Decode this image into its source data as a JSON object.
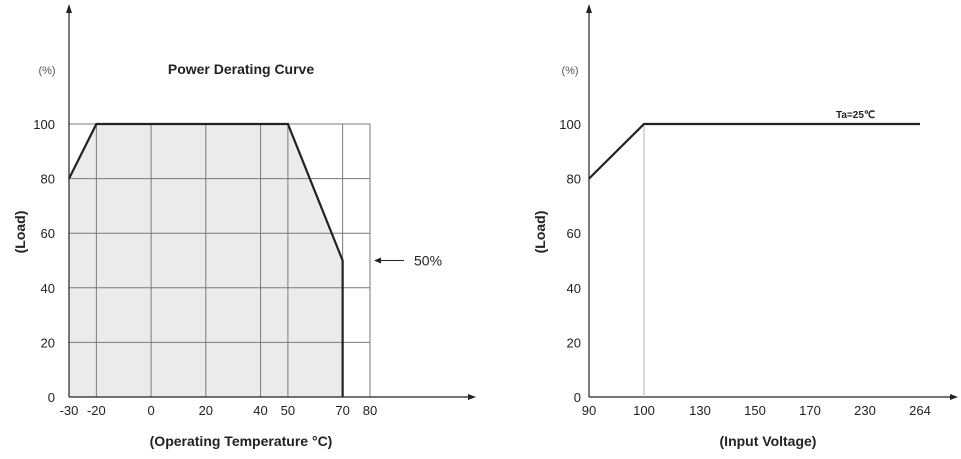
{
  "chart_data": [
    {
      "type": "area",
      "title": "Power Derating Curve",
      "xlabel": "(Operating Temperature °C)",
      "ylabel": "(Load)",
      "y_unit": "(%)",
      "x_ticks": [
        "-30",
        "-20",
        "0",
        "20",
        "40",
        "50",
        "70",
        "80"
      ],
      "y_ticks": [
        "0",
        "20",
        "40",
        "60",
        "80",
        "100"
      ],
      "xlim": [
        -30,
        80
      ],
      "ylim": [
        0,
        100
      ],
      "grid": true,
      "series": [
        {
          "x": [
            -30,
            -20,
            50,
            70,
            70
          ],
          "y": [
            80,
            100,
            100,
            50,
            0
          ]
        }
      ],
      "annotation": {
        "text": "50%",
        "x": 70,
        "y": 50
      }
    },
    {
      "type": "line",
      "title": "",
      "xlabel": "(Input Voltage)",
      "ylabel": "(Load)",
      "y_unit": "(%)",
      "x_ticks": [
        "90",
        "100",
        "130",
        "150",
        "170",
        "230",
        "264"
      ],
      "y_ticks": [
        "0",
        "20",
        "40",
        "60",
        "80",
        "100"
      ],
      "ylim": [
        0,
        100
      ],
      "grid": false,
      "series": [
        {
          "x": [
            "90",
            "100",
            "264"
          ],
          "y": [
            80,
            100,
            100
          ]
        }
      ],
      "annotation": {
        "text": "Ta=25℃"
      }
    }
  ]
}
